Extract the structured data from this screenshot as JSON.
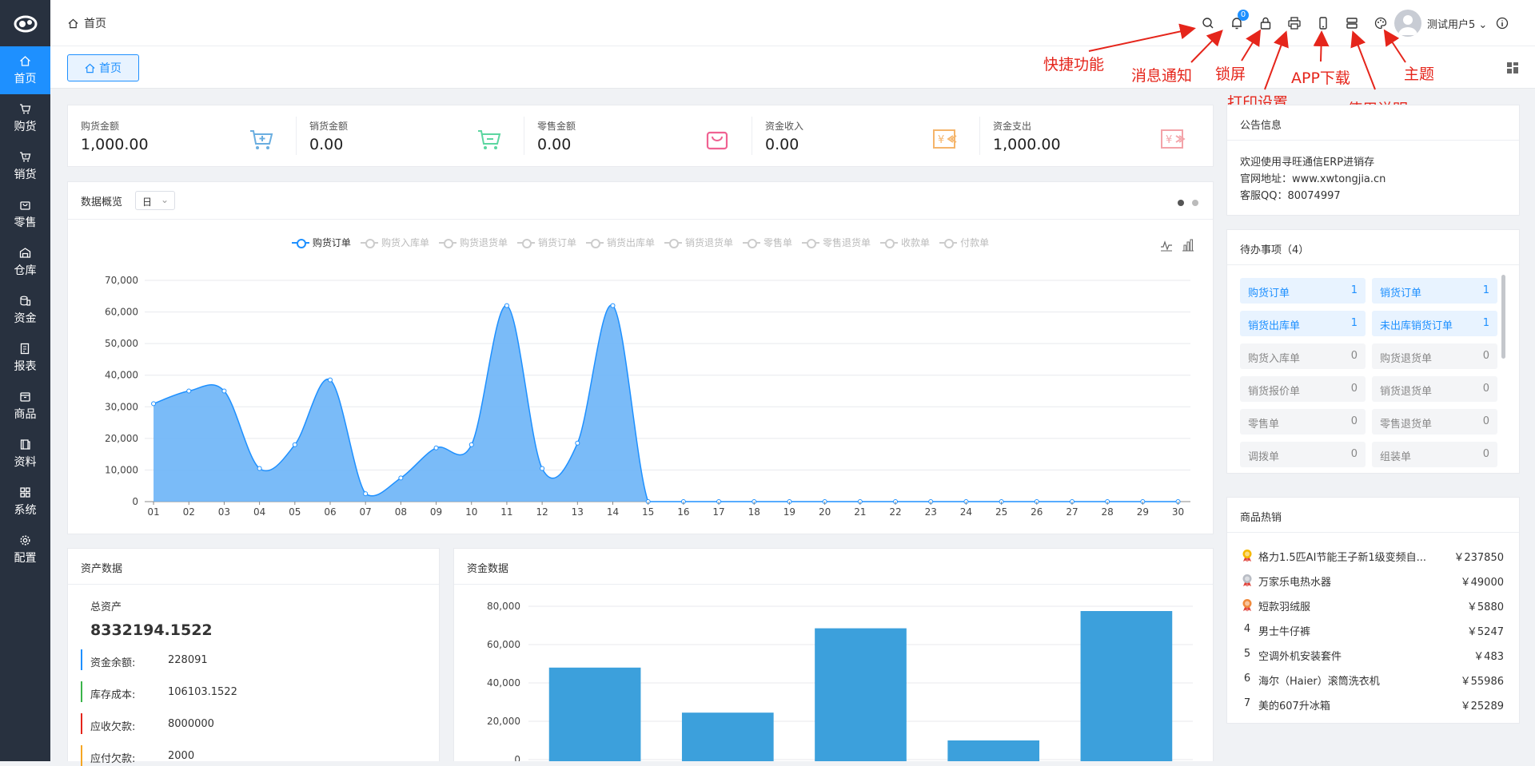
{
  "sidebar": {
    "logo": "app-logo",
    "items": [
      {
        "label": "首页",
        "icon": "home-icon",
        "active": true
      },
      {
        "label": "购货",
        "icon": "cart-icon"
      },
      {
        "label": "销货",
        "icon": "cart-out-icon"
      },
      {
        "label": "零售",
        "icon": "bag-icon"
      },
      {
        "label": "仓库",
        "icon": "warehouse-icon"
      },
      {
        "label": "资金",
        "icon": "coins-icon"
      },
      {
        "label": "报表",
        "icon": "report-icon"
      },
      {
        "label": "商品",
        "icon": "box-icon"
      },
      {
        "label": "资料",
        "icon": "book-icon"
      },
      {
        "label": "系统",
        "icon": "grid-icon"
      },
      {
        "label": "配置",
        "icon": "gear-icon"
      }
    ]
  },
  "header": {
    "breadcrumb": "首页",
    "notify_count": "0",
    "username": "测试用户5",
    "icons": [
      "search-icon",
      "bell-icon",
      "lock-icon",
      "printer-icon",
      "phone-icon",
      "manual-icon",
      "palette-icon",
      "info-icon"
    ]
  },
  "tabs": {
    "home": "首页"
  },
  "annotations": {
    "quick": "快捷功能",
    "message": "消息通知",
    "lock": "锁屏",
    "print": "打印设置",
    "app": "APP下载",
    "manual": "使用说明",
    "theme": "主题"
  },
  "stats": [
    {
      "label": "购货金额",
      "value": "1,000.00",
      "icon": "cart-add-icon",
      "color": "#6aaee0"
    },
    {
      "label": "销货金额",
      "value": "0.00",
      "icon": "cart-out-icon",
      "color": "#5cd6a0"
    },
    {
      "label": "零售金额",
      "value": "0.00",
      "icon": "bag-icon",
      "color": "#f06292"
    },
    {
      "label": "资金收入",
      "value": "0.00",
      "icon": "money-in-icon",
      "color": "#f5b56b"
    },
    {
      "label": "资金支出",
      "value": "1,000.00",
      "icon": "money-out-icon",
      "color": "#f3a3a8"
    }
  ],
  "overview": {
    "title": "数据概览",
    "period": "日",
    "legend": [
      "购货订单",
      "购货入库单",
      "购货退货单",
      "销货订单",
      "销货出库单",
      "销货退货单",
      "零售单",
      "零售退货单",
      "收款单",
      "付款单"
    ],
    "tool_icons": [
      "line-chart-icon",
      "bar-chart-icon"
    ]
  },
  "chart_data": [
    {
      "type": "area",
      "x": [
        "01",
        "02",
        "03",
        "04",
        "05",
        "06",
        "07",
        "08",
        "09",
        "10",
        "11",
        "12",
        "13",
        "14",
        "15",
        "16",
        "17",
        "18",
        "19",
        "20",
        "21",
        "22",
        "23",
        "24",
        "25",
        "26",
        "27",
        "28",
        "29",
        "30"
      ],
      "series": [
        {
          "name": "购货订单",
          "values": [
            31000,
            35000,
            35000,
            10500,
            18000,
            38500,
            2500,
            7500,
            17000,
            18000,
            62000,
            10500,
            18500,
            62000,
            0,
            0,
            0,
            0,
            0,
            0,
            0,
            0,
            0,
            0,
            0,
            0,
            0,
            0,
            0,
            0
          ]
        }
      ],
      "yticks": [
        "0",
        "10,000",
        "20,000",
        "30,000",
        "40,000",
        "50,000",
        "60,000",
        "70,000"
      ],
      "ylim": [
        0,
        70000
      ],
      "grid": true,
      "color": "#1e90ff"
    },
    {
      "type": "bar",
      "series": [
        {
          "values": [
            48000,
            24500,
            68500,
            10000,
            77500
          ]
        }
      ],
      "yticks": [
        "0",
        "20,000",
        "40,000",
        "60,000",
        "80,000"
      ],
      "ylim": [
        0,
        80000
      ],
      "grid": true,
      "color": "#3ca0dc"
    }
  ],
  "notice": {
    "title": "公告信息",
    "lines": [
      "欢迎使用寻旺通信ERP进销存",
      "官网地址：www.xwtongjia.cn",
      "客服QQ：80074997"
    ]
  },
  "todo": {
    "title": "待办事项（4）",
    "items": [
      {
        "label": "购货订单",
        "count": "1",
        "on": true
      },
      {
        "label": "销货订单",
        "count": "1",
        "on": true
      },
      {
        "label": "销货出库单",
        "count": "1",
        "on": true
      },
      {
        "label": "未出库销货订单",
        "count": "1",
        "on": true
      },
      {
        "label": "购货入库单",
        "count": "0"
      },
      {
        "label": "购货退货单",
        "count": "0"
      },
      {
        "label": "销货报价单",
        "count": "0"
      },
      {
        "label": "销货退货单",
        "count": "0"
      },
      {
        "label": "零售单",
        "count": "0"
      },
      {
        "label": "零售退货单",
        "count": "0"
      },
      {
        "label": "调拨单",
        "count": "0"
      },
      {
        "label": "组装单",
        "count": "0"
      }
    ]
  },
  "hot": {
    "title": "商品热销",
    "items": [
      {
        "rank": "",
        "medal": "gold-medal-icon",
        "name": "格力1.5匹AI节能王子新1级变频自...",
        "price": "￥237850"
      },
      {
        "rank": "",
        "medal": "silver-medal-icon",
        "name": "万家乐电热水器",
        "price": "￥49000"
      },
      {
        "rank": "",
        "medal": "bronze-medal-icon",
        "name": "短款羽绒服",
        "price": "￥5880"
      },
      {
        "rank": "4",
        "name": "男士牛仔裤",
        "price": "￥5247"
      },
      {
        "rank": "5",
        "name": "空调外机安装套件",
        "price": "￥483"
      },
      {
        "rank": "6",
        "name": "海尔（Haier）滚筒洗衣机",
        "price": "￥55986"
      },
      {
        "rank": "7",
        "name": "美的607升冰箱",
        "price": "￥25289"
      }
    ]
  },
  "assets": {
    "title": "资产数据",
    "total_label": "总资产",
    "total_value": "8332194.1522",
    "rows": [
      {
        "label": "资金余额:",
        "value": "228091",
        "color": "#1e90ff"
      },
      {
        "label": "库存成本:",
        "value": "106103.1522",
        "color": "#3bb44a"
      },
      {
        "label": "应收欠款:",
        "value": "8000000",
        "color": "#e5251b"
      },
      {
        "label": "应付欠款:",
        "value": "2000",
        "color": "#f5a623"
      }
    ]
  },
  "funds": {
    "title": "资金数据"
  }
}
